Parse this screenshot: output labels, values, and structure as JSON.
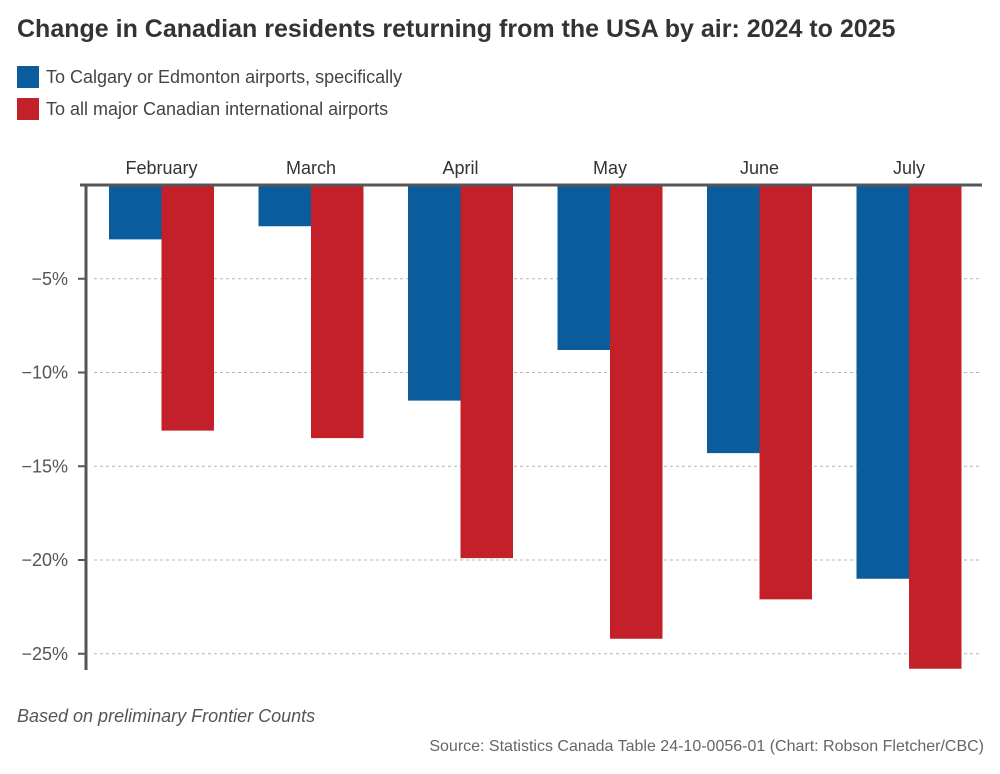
{
  "chart_data": {
    "type": "bar",
    "title": "Change in Canadian residents returning from the USA by air: 2024 to 2025",
    "categories": [
      "February",
      "March",
      "April",
      "May",
      "June",
      "July"
    ],
    "series": [
      {
        "name": "To Calgary or Edmonton airports, specifically",
        "color": "#0a5c9c",
        "values": [
          -2.9,
          -2.2,
          -11.5,
          -8.8,
          -14.3,
          -21.0
        ]
      },
      {
        "name": "To all major Canadian international airports",
        "color": "#c4202a",
        "values": [
          -13.1,
          -13.5,
          -19.9,
          -24.2,
          -22.1,
          -25.8
        ]
      }
    ],
    "xlabel": "",
    "ylabel": "",
    "ylim": [
      -26,
      0
    ],
    "yticks": [
      -5,
      -10,
      -15,
      -20,
      -25
    ],
    "ytick_labels": [
      "−5%",
      "−10%",
      "−15%",
      "−20%",
      "−25%"
    ],
    "grid": true,
    "legend_position": "top-left"
  },
  "note": "Based on preliminary Frontier Counts",
  "source": "Source: Statistics Canada Table 24-10-0056-01 (Chart: Robson Fletcher/CBC)"
}
